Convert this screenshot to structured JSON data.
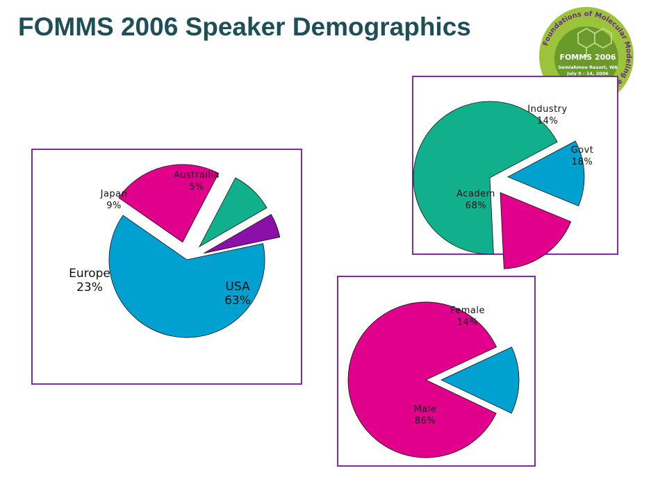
{
  "slide": {
    "title": "FOMMS 2006 Speaker Demographics"
  },
  "logo": {
    "ring_text": "Foundations of Molecular Modeling and Simulation",
    "name": "FOMMS 2006",
    "location": "Semiahmoo Resort, WA",
    "dates": "July 9 - 14, 2006",
    "colors": {
      "ring": "#9cc43a",
      "center": "#6a9a2c",
      "ring_text": "#6b2a8c",
      "center_text": "#ffffff"
    }
  },
  "colors": {
    "frame": "#7f2aa8",
    "title": "#1f4f56"
  },
  "chart_data": [
    {
      "type": "pie",
      "title": "",
      "slices": [
        {
          "label": "USA",
          "value": 63,
          "value_text": "63%",
          "color": "#00a0d0",
          "exploded": false
        },
        {
          "label": "Europe",
          "value": 23,
          "value_text": "23%",
          "color": "#e0008c",
          "exploded": true
        },
        {
          "label": "Japan",
          "value": 9,
          "value_text": "9%",
          "color": "#10b08c",
          "exploded": true
        },
        {
          "label": "Austrailia",
          "value": 5,
          "value_text": "5%",
          "color": "#8a10a8",
          "exploded": true
        }
      ]
    },
    {
      "type": "pie",
      "title": "",
      "slices": [
        {
          "label": "Industry",
          "value": 14,
          "value_text": "14%",
          "color": "#00a0d0",
          "exploded": true
        },
        {
          "label": "Govt",
          "value": 18,
          "value_text": "18%",
          "color": "#e0008c",
          "exploded": true
        },
        {
          "label": "Academ",
          "value": 68,
          "value_text": "68%",
          "color": "#10b08c",
          "exploded": false
        }
      ]
    },
    {
      "type": "pie",
      "title": "",
      "slices": [
        {
          "label": "Female",
          "value": 14,
          "value_text": "14%",
          "color": "#00a0d0",
          "exploded": true
        },
        {
          "label": "Male",
          "value": 86,
          "value_text": "86%",
          "color": "#e0008c",
          "exploded": false
        }
      ]
    }
  ]
}
